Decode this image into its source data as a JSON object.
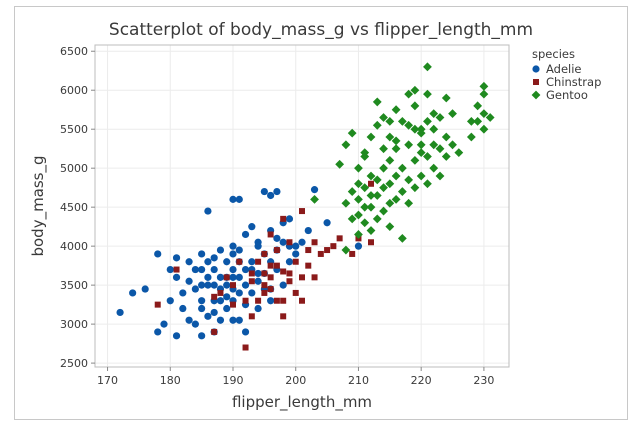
{
  "colors": {
    "Adelie": "#0b57a8",
    "Chinstrap": "#8b1a1a",
    "Gentoo": "#1f8a1f",
    "grid": "#ececec",
    "plot_border": "#bdbdbd"
  },
  "chart_data": {
    "type": "scatter",
    "title": "Scatterplot of body_mass_g vs flipper_length_mm",
    "xlabel": "flipper_length_mm",
    "ylabel": "body_mass_g",
    "xlim": [
      168,
      234
    ],
    "ylim": [
      2450,
      6580
    ],
    "xticks": [
      170,
      180,
      190,
      200,
      210,
      220,
      230
    ],
    "yticks": [
      2500,
      3000,
      3500,
      4000,
      4500,
      5000,
      5500,
      6000,
      6500
    ],
    "grid": true,
    "legend": {
      "title": "species",
      "position": "top-right"
    },
    "series": [
      {
        "name": "Adelie",
        "marker": "circle",
        "points": [
          [
            172,
            3150
          ],
          [
            174,
            3400
          ],
          [
            176,
            3450
          ],
          [
            178,
            3900
          ],
          [
            178,
            2900
          ],
          [
            179,
            3000
          ],
          [
            180,
            3700
          ],
          [
            180,
            3300
          ],
          [
            181,
            3600
          ],
          [
            181,
            3850
          ],
          [
            181,
            2850
          ],
          [
            182,
            3200
          ],
          [
            182,
            3400
          ],
          [
            183,
            3550
          ],
          [
            183,
            3800
          ],
          [
            184,
            3700
          ],
          [
            184,
            3450
          ],
          [
            184,
            3000
          ],
          [
            185,
            3200
          ],
          [
            185,
            3500
          ],
          [
            185,
            3700
          ],
          [
            185,
            3300
          ],
          [
            185,
            2850
          ],
          [
            185,
            3900
          ],
          [
            186,
            3600
          ],
          [
            186,
            3500
          ],
          [
            186,
            4450
          ],
          [
            186,
            3100
          ],
          [
            186,
            3800
          ],
          [
            187,
            3300
          ],
          [
            187,
            3500
          ],
          [
            187,
            3700
          ],
          [
            187,
            3150
          ],
          [
            187,
            2900
          ],
          [
            188,
            3450
          ],
          [
            188,
            3600
          ],
          [
            188,
            3300
          ],
          [
            188,
            3950
          ],
          [
            188,
            3050
          ],
          [
            189,
            3200
          ],
          [
            189,
            3500
          ],
          [
            189,
            3800
          ],
          [
            189,
            3600
          ],
          [
            190,
            3900
          ],
          [
            190,
            3450
          ],
          [
            190,
            3700
          ],
          [
            190,
            3300
          ],
          [
            190,
            4000
          ],
          [
            190,
            3600
          ],
          [
            190,
            3050
          ],
          [
            190,
            4600
          ],
          [
            191,
            3800
          ],
          [
            191,
            3600
          ],
          [
            191,
            4600
          ],
          [
            191,
            3400
          ],
          [
            191,
            3050
          ],
          [
            191,
            3950
          ],
          [
            192,
            3700
          ],
          [
            192,
            3500
          ],
          [
            192,
            4150
          ],
          [
            192,
            3250
          ],
          [
            192,
            2900
          ],
          [
            193,
            3700
          ],
          [
            193,
            4250
          ],
          [
            193,
            3400
          ],
          [
            193,
            3800
          ],
          [
            194,
            3550
          ],
          [
            194,
            4050
          ],
          [
            194,
            3650
          ],
          [
            194,
            4000
          ],
          [
            195,
            3450
          ],
          [
            195,
            3900
          ],
          [
            195,
            3650
          ],
          [
            195,
            4700
          ],
          [
            196,
            4650
          ],
          [
            196,
            3800
          ],
          [
            196,
            3450
          ],
          [
            196,
            4200
          ],
          [
            197,
            3700
          ],
          [
            197,
            4100
          ],
          [
            197,
            4700
          ],
          [
            197,
            3950
          ],
          [
            198,
            4300
          ],
          [
            198,
            3500
          ],
          [
            198,
            4050
          ],
          [
            199,
            4000
          ],
          [
            199,
            3800
          ],
          [
            199,
            4350
          ],
          [
            200,
            4000
          ],
          [
            200,
            3900
          ],
          [
            201,
            4050
          ],
          [
            202,
            4200
          ],
          [
            203,
            4725
          ],
          [
            205,
            4300
          ],
          [
            210,
            4000
          ],
          [
            196,
            3300
          ],
          [
            194,
            3200
          ],
          [
            189,
            3350
          ],
          [
            183,
            3050
          ],
          [
            187,
            3850
          ]
        ]
      },
      {
        "name": "Chinstrap",
        "marker": "square",
        "points": [
          [
            178,
            3250
          ],
          [
            181,
            3700
          ],
          [
            187,
            2900
          ],
          [
            187,
            3350
          ],
          [
            188,
            3400
          ],
          [
            189,
            3600
          ],
          [
            190,
            3250
          ],
          [
            190,
            3500
          ],
          [
            191,
            3800
          ],
          [
            192,
            2700
          ],
          [
            192,
            3300
          ],
          [
            193,
            3550
          ],
          [
            193,
            3650
          ],
          [
            193,
            3100
          ],
          [
            194,
            3800
          ],
          [
            194,
            3300
          ],
          [
            195,
            3500
          ],
          [
            195,
            3400
          ],
          [
            195,
            3900
          ],
          [
            195,
            3650
          ],
          [
            196,
            3600
          ],
          [
            196,
            4150
          ],
          [
            196,
            3450
          ],
          [
            197,
            3750
          ],
          [
            197,
            3300
          ],
          [
            197,
            3950
          ],
          [
            198,
            3675
          ],
          [
            198,
            3300
          ],
          [
            198,
            4350
          ],
          [
            199,
            3650
          ],
          [
            199,
            3550
          ],
          [
            199,
            4050
          ],
          [
            200,
            3800
          ],
          [
            200,
            3400
          ],
          [
            201,
            3600
          ],
          [
            201,
            4450
          ],
          [
            201,
            3300
          ],
          [
            202,
            3750
          ],
          [
            202,
            3950
          ],
          [
            203,
            4050
          ],
          [
            203,
            3600
          ],
          [
            204,
            3900
          ],
          [
            205,
            3950
          ],
          [
            206,
            4000
          ],
          [
            207,
            4100
          ],
          [
            209,
            3900
          ],
          [
            210,
            4100
          ],
          [
            212,
            4800
          ],
          [
            212,
            4050
          ],
          [
            196,
            3750
          ],
          [
            198,
            3100
          ]
        ]
      },
      {
        "name": "Gentoo",
        "marker": "diamond",
        "points": [
          [
            203,
            4600
          ],
          [
            207,
            5050
          ],
          [
            208,
            3950
          ],
          [
            208,
            4550
          ],
          [
            208,
            5300
          ],
          [
            209,
            4350
          ],
          [
            209,
            4700
          ],
          [
            209,
            5450
          ],
          [
            210,
            4150
          ],
          [
            210,
            4400
          ],
          [
            210,
            4600
          ],
          [
            210,
            4800
          ],
          [
            210,
            5000
          ],
          [
            211,
            4300
          ],
          [
            211,
            4500
          ],
          [
            211,
            4750
          ],
          [
            211,
            5150
          ],
          [
            212,
            4200
          ],
          [
            212,
            4500
          ],
          [
            212,
            4650
          ],
          [
            212,
            4900
          ],
          [
            213,
            4350
          ],
          [
            213,
            4650
          ],
          [
            213,
            4850
          ],
          [
            213,
            5550
          ],
          [
            213,
            5850
          ],
          [
            214,
            4450
          ],
          [
            214,
            4750
          ],
          [
            214,
            5000
          ],
          [
            214,
            5250
          ],
          [
            215,
            4250
          ],
          [
            215,
            4550
          ],
          [
            215,
            4800
          ],
          [
            215,
            5100
          ],
          [
            215,
            5400
          ],
          [
            215,
            5600
          ],
          [
            216,
            4600
          ],
          [
            216,
            4900
          ],
          [
            216,
            5250
          ],
          [
            216,
            5750
          ],
          [
            217,
            4100
          ],
          [
            217,
            4700
          ],
          [
            217,
            5000
          ],
          [
            218,
            4550
          ],
          [
            218,
            4850
          ],
          [
            218,
            5300
          ],
          [
            218,
            5550
          ],
          [
            218,
            5950
          ],
          [
            219,
            4750
          ],
          [
            219,
            5100
          ],
          [
            219,
            5500
          ],
          [
            219,
            5800
          ],
          [
            220,
            4900
          ],
          [
            220,
            5200
          ],
          [
            220,
            5500
          ],
          [
            220,
            5300
          ],
          [
            221,
            4800
          ],
          [
            221,
            5150
          ],
          [
            221,
            5600
          ],
          [
            221,
            6300
          ],
          [
            221,
            5950
          ],
          [
            222,
            5000
          ],
          [
            222,
            5300
          ],
          [
            222,
            5700
          ],
          [
            223,
            4900
          ],
          [
            223,
            5250
          ],
          [
            223,
            5650
          ],
          [
            224,
            5400
          ],
          [
            224,
            5150
          ],
          [
            225,
            5300
          ],
          [
            225,
            5700
          ],
          [
            226,
            5200
          ],
          [
            228,
            5600
          ],
          [
            228,
            5400
          ],
          [
            229,
            5800
          ],
          [
            229,
            5600
          ],
          [
            230,
            5700
          ],
          [
            230,
            5950
          ],
          [
            230,
            5500
          ],
          [
            230,
            6050
          ],
          [
            231,
            5650
          ],
          [
            217,
            5600
          ],
          [
            219,
            6000
          ],
          [
            220,
            5450
          ],
          [
            214,
            5650
          ],
          [
            216,
            5350
          ],
          [
            222,
            5500
          ],
          [
            224,
            5900
          ],
          [
            212,
            5400
          ],
          [
            211,
            5200
          ]
        ]
      }
    ]
  }
}
